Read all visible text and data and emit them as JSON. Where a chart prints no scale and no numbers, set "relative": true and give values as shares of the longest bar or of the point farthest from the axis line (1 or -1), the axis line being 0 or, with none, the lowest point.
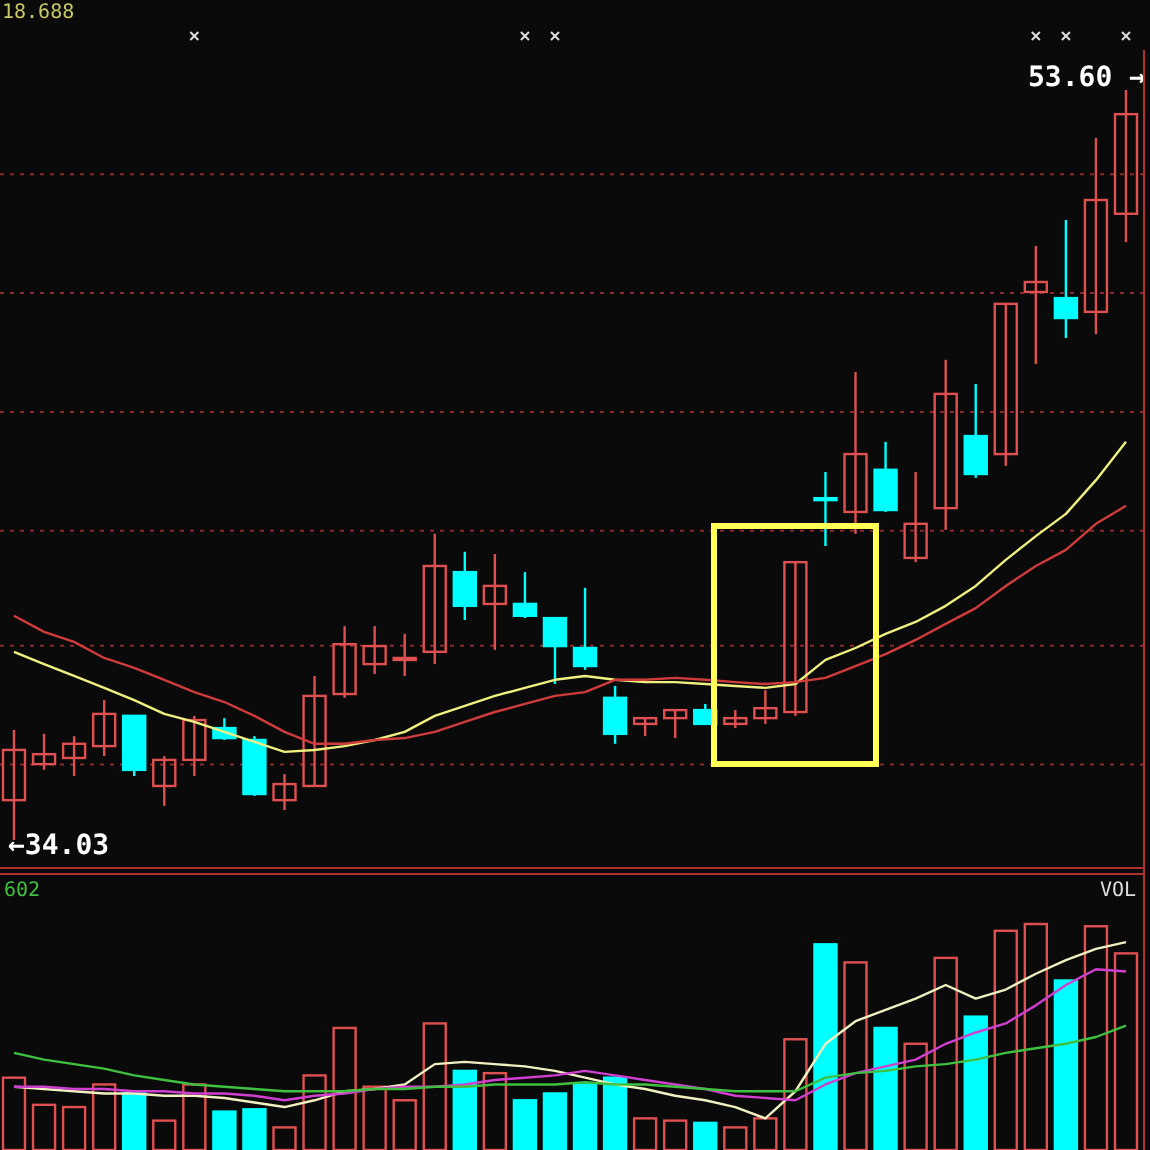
{
  "chart_data": [
    {
      "type": "candlestick",
      "categories": [
        null,
        null,
        null,
        null,
        null,
        null,
        null,
        null,
        null,
        null,
        null,
        null,
        null,
        null,
        null,
        null,
        null,
        null,
        null,
        null,
        null,
        null,
        null,
        null,
        null,
        null,
        null,
        null,
        null,
        null,
        null,
        null,
        null,
        null,
        null,
        null,
        null,
        null
      ],
      "ohlc": [
        [
          35.07,
          36.9,
          34.03,
          36.38
        ],
        [
          36.01,
          36.8,
          35.86,
          36.27
        ],
        [
          36.17,
          36.74,
          35.7,
          36.54
        ],
        [
          36.48,
          37.68,
          36.22,
          37.32
        ],
        [
          37.27,
          37.27,
          35.7,
          35.86
        ],
        [
          35.44,
          36.22,
          34.92,
          36.12
        ],
        [
          36.12,
          37.27,
          35.7,
          37.16
        ],
        [
          36.95,
          37.21,
          36.64,
          36.69
        ],
        [
          36.64,
          36.74,
          35.18,
          35.23
        ],
        [
          35.07,
          35.75,
          34.81,
          35.49
        ],
        [
          35.44,
          38.31,
          35.44,
          37.79
        ],
        [
          37.84,
          39.61,
          37.74,
          39.14
        ],
        [
          38.62,
          39.61,
          38.36,
          39.09
        ],
        [
          38.75,
          39.41,
          38.31,
          38.78
        ],
        [
          38.94,
          42.02,
          38.62,
          41.18
        ],
        [
          41.02,
          41.55,
          39.77,
          40.14
        ],
        [
          40.19,
          41.49,
          38.99,
          40.66
        ],
        [
          40.19,
          41.02,
          39.82,
          39.88
        ],
        [
          39.82,
          39.82,
          38.1,
          39.09
        ],
        [
          39.04,
          40.61,
          38.47,
          38.57
        ],
        [
          37.74,
          38.05,
          36.54,
          36.8
        ],
        [
          37.06,
          37.21,
          36.74,
          37.21
        ],
        [
          37.21,
          37.42,
          36.69,
          37.42
        ],
        [
          37.42,
          37.58,
          37.06,
          37.06
        ],
        [
          37.06,
          37.42,
          36.95,
          37.21
        ],
        [
          37.21,
          37.94,
          37.06,
          37.47
        ],
        [
          37.37,
          41.28,
          37.27,
          41.28
        ],
        [
          42.95,
          43.63,
          41.7,
          42.9
        ],
        [
          42.59,
          46.24,
          42.02,
          44.1
        ],
        [
          43.69,
          44.42,
          42.59,
          42.64
        ],
        [
          41.39,
          43.63,
          41.28,
          42.28
        ],
        [
          42.69,
          46.56,
          42.12,
          45.67
        ],
        [
          44.57,
          45.93,
          43.48,
          43.58
        ],
        [
          44.1,
          48.02,
          43.79,
          48.02
        ],
        [
          48.33,
          49.53,
          46.45,
          48.59
        ],
        [
          48.17,
          50.21,
          47.13,
          47.65
        ],
        [
          47.81,
          52.35,
          47.23,
          50.73
        ],
        [
          50.37,
          53.6,
          49.63,
          52.97
        ]
      ],
      "colors": [
        "#e05050",
        "#e05050",
        "#e05050",
        "#e05050",
        "#00ffff",
        "#e05050",
        "#e05050",
        "#00ffff",
        "#00ffff",
        "#e05050",
        "#e05050",
        "#e05050",
        "#e05050",
        "#e05050",
        "#e05050",
        "#00ffff",
        "#e05050",
        "#00ffff",
        "#00ffff",
        "#00ffff",
        "#00ffff",
        "#e05050",
        "#e05050",
        "#00ffff",
        "#e05050",
        "#e05050",
        "#e05050",
        "#00ffff",
        "#e05050",
        "#00ffff",
        "#e05050",
        "#e05050",
        "#00ffff",
        "#e05050",
        "#e05050",
        "#00ffff",
        "#e05050",
        "#e05050"
      ],
      "series": [
        {
          "type": "line",
          "color": "#f0f080",
          "values": [
            38.94,
            38.62,
            38.31,
            38.0,
            37.68,
            37.32,
            37.11,
            36.85,
            36.59,
            36.33,
            36.38,
            36.48,
            36.64,
            36.85,
            37.27,
            37.53,
            37.79,
            38.0,
            38.21,
            38.31,
            38.21,
            38.15,
            38.15,
            38.1,
            38.05,
            38.0,
            38.1,
            38.73,
            39.04,
            39.41,
            39.72,
            40.14,
            40.66,
            41.34,
            41.96,
            42.54,
            43.42,
            44.42
          ]
        },
        {
          "type": "line",
          "color": "#d03c3c",
          "values": [
            39.88,
            39.46,
            39.2,
            38.78,
            38.52,
            38.21,
            37.89,
            37.63,
            37.27,
            36.85,
            36.54,
            36.54,
            36.64,
            36.69,
            36.85,
            37.11,
            37.37,
            37.58,
            37.79,
            37.89,
            38.21,
            38.21,
            38.26,
            38.21,
            38.15,
            38.1,
            38.15,
            38.26,
            38.57,
            38.88,
            39.25,
            39.67,
            40.08,
            40.66,
            41.18,
            41.6,
            42.28,
            42.75
          ]
        }
      ],
      "grid": "y",
      "yticks": [
        {
          "value": 36.0,
          "label": null
        },
        {
          "value": 39.1,
          "label": null
        },
        {
          "value": 42.1,
          "label": null
        },
        {
          "value": 45.2,
          "label": null
        },
        {
          "value": 48.3,
          "label": null
        },
        {
          "value": 51.4,
          "label": null
        }
      ],
      "annotations": [
        "18.688",
        "←34.03",
        "53.60 →"
      ]
    },
    {
      "type": "bar",
      "relative": true,
      "title": "VOL",
      "categories": [
        null,
        null,
        null,
        null,
        null,
        null,
        null,
        null,
        null,
        null,
        null,
        null,
        null,
        null,
        null,
        null,
        null,
        null,
        null,
        null,
        null,
        null,
        null,
        null,
        null,
        null,
        null,
        null,
        null,
        null,
        null,
        null,
        null,
        null,
        null,
        null,
        null,
        null
      ],
      "values": [
        0.32,
        0.2,
        0.19,
        0.29,
        0.25,
        0.13,
        0.29,
        0.17,
        0.18,
        0.1,
        0.33,
        0.54,
        0.28,
        0.22,
        0.56,
        0.35,
        0.34,
        0.22,
        0.25,
        0.29,
        0.32,
        0.14,
        0.13,
        0.12,
        0.1,
        0.14,
        0.49,
        0.91,
        0.83,
        0.54,
        0.47,
        0.85,
        0.59,
        0.97,
        1,
        0.75,
        0.99,
        0.87
      ],
      "colors": [
        "#e05050",
        "#e05050",
        "#e05050",
        "#e05050",
        "#00ffff",
        "#e05050",
        "#e05050",
        "#00ffff",
        "#00ffff",
        "#e05050",
        "#e05050",
        "#e05050",
        "#e05050",
        "#e05050",
        "#e05050",
        "#00ffff",
        "#e05050",
        "#00ffff",
        "#00ffff",
        "#00ffff",
        "#00ffff",
        "#e05050",
        "#e05050",
        "#00ffff",
        "#e05050",
        "#e05050",
        "#e05050",
        "#00ffff",
        "#e05050",
        "#00ffff",
        "#e05050",
        "#e05050",
        "#00ffff",
        "#e05050",
        "#e05050",
        "#00ffff",
        "#e05050",
        "#e05050"
      ],
      "series": [
        {
          "type": "line",
          "color": "#f0f0c0",
          "values": [
            0.28,
            0.27,
            0.26,
            0.25,
            0.25,
            0.24,
            0.24,
            0.23,
            0.21,
            0.19,
            0.22,
            0.26,
            0.27,
            0.29,
            0.38,
            0.39,
            0.38,
            0.37,
            0.35,
            0.32,
            0.29,
            0.27,
            0.24,
            0.22,
            0.19,
            0.14,
            0.26,
            0.47,
            0.57,
            0.62,
            0.67,
            0.73,
            0.67,
            0.71,
            0.78,
            0.84,
            0.89,
            0.92
          ]
        },
        {
          "type": "line",
          "color": "#d040d0",
          "values": [
            0.28,
            0.28,
            0.27,
            0.27,
            0.26,
            0.26,
            0.25,
            0.25,
            0.24,
            0.22,
            0.24,
            0.25,
            0.27,
            0.28,
            0.28,
            0.29,
            0.31,
            0.32,
            0.33,
            0.35,
            0.33,
            0.31,
            0.29,
            0.27,
            0.24,
            0.23,
            0.22,
            0.29,
            0.34,
            0.37,
            0.4,
            0.47,
            0.52,
            0.56,
            0.64,
            0.73,
            0.8,
            0.79
          ]
        },
        {
          "type": "line",
          "color": "#40c040",
          "values": [
            0.43,
            0.4,
            0.38,
            0.36,
            0.33,
            0.31,
            0.29,
            0.28,
            0.27,
            0.26,
            0.26,
            0.26,
            0.27,
            0.27,
            0.28,
            0.28,
            0.29,
            0.29,
            0.29,
            0.3,
            0.29,
            0.29,
            0.28,
            0.27,
            0.26,
            0.26,
            0.26,
            0.32,
            0.34,
            0.35,
            0.37,
            0.38,
            0.4,
            0.43,
            0.45,
            0.47,
            0.5,
            0.55
          ]
        }
      ],
      "annotations": [
        "602"
      ]
    }
  ]
}
